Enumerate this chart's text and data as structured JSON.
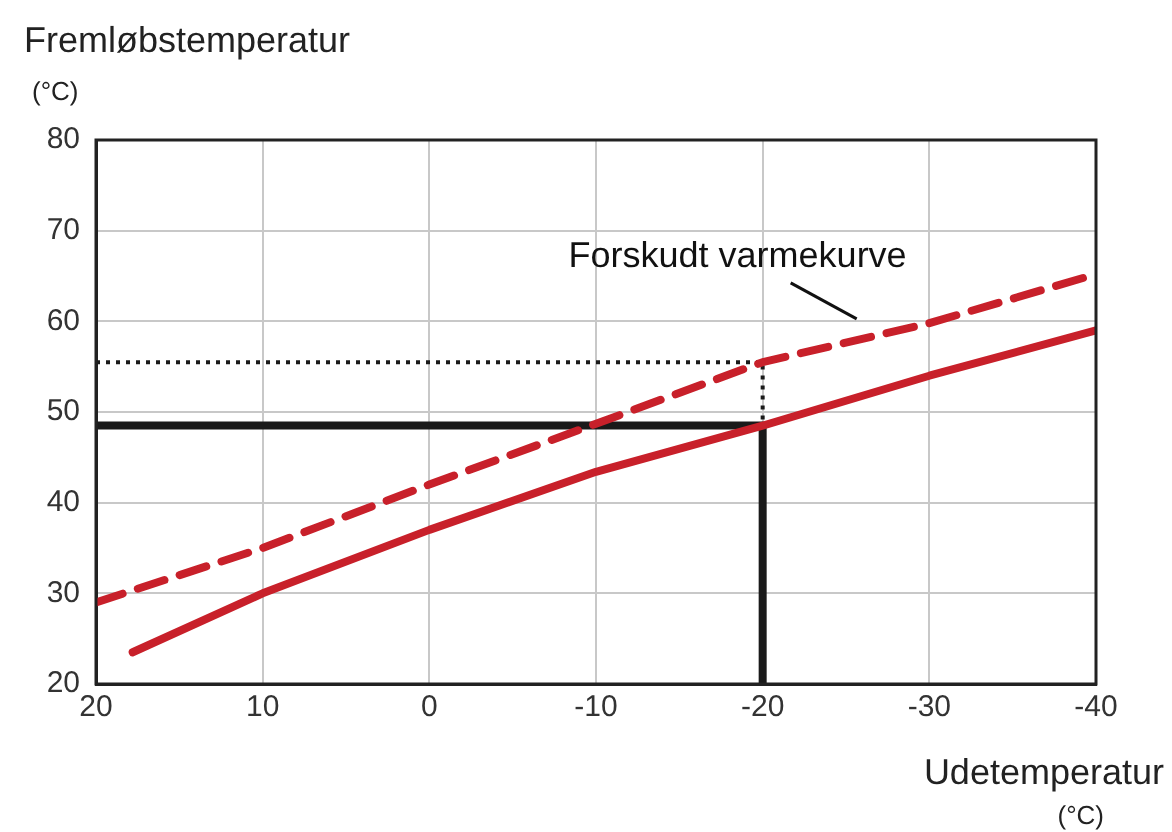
{
  "chart_data": {
    "type": "line",
    "xlabel": "Udetemperatur\n(°C)",
    "ylabel": "Fremløbstemperatur\n(°C)",
    "xlim": [
      20,
      -40
    ],
    "xticks": [
      20,
      10,
      0,
      -10,
      -20,
      -30,
      -40
    ],
    "ylim": [
      20,
      80
    ],
    "yticks": [
      20,
      30,
      40,
      50,
      60,
      70,
      80
    ],
    "grid": true,
    "marker": "none",
    "series": [
      {
        "color": "#c8202a",
        "line_style": "solid",
        "x": [
          17.8,
          10,
          0,
          -10,
          -20,
          -30,
          -40
        ],
        "values": [
          23.5,
          30,
          37,
          43.4,
          48.5,
          54,
          59
        ]
      },
      {
        "color": "#c8202a",
        "line_style": "dashed",
        "x": [
          20,
          10,
          0,
          -10,
          -20,
          -30,
          -40
        ],
        "values": [
          29,
          35,
          42,
          48.7,
          55.5,
          59.8,
          65.2
        ]
      },
      {
        "color": "#1a1a1a",
        "line_style": "solid",
        "x": [
          20,
          -20,
          -20
        ],
        "values": [
          48.5,
          48.5,
          20
        ]
      },
      {
        "color": "#1a1a1a",
        "line_style": "dotted",
        "x": [
          20,
          -20,
          -20
        ],
        "values": [
          55.5,
          55.5,
          48.5
        ]
      }
    ],
    "annotations": [
      {
        "text": "Forskudt varmekurve",
        "x": -26,
        "y": 58.5
      }
    ]
  }
}
